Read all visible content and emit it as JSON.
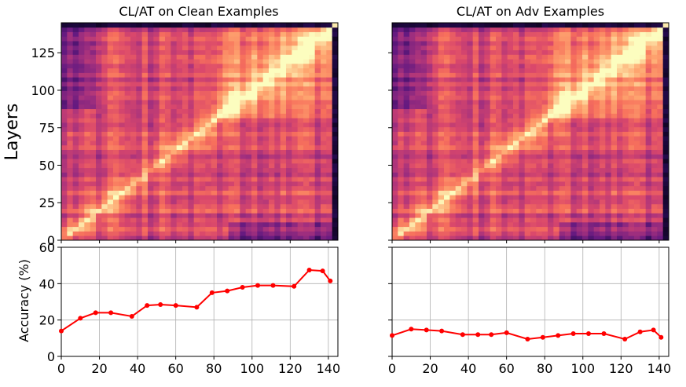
{
  "figure": {
    "ylabel": "Layers"
  },
  "chart_data": [
    {
      "type": "heatmap",
      "title": "CL/AT on Clean Examples",
      "xlabel": "",
      "ylabel": "Layers",
      "xlim": [
        0,
        145
      ],
      "ylim": [
        0,
        145
      ],
      "yticks": [
        0,
        25,
        50,
        75,
        100,
        125
      ],
      "colormap": "magma (purple → orange → light yellow)",
      "description": "Layer-to-layer similarity matrix; bright diagonal, bright block for layers ~80–140"
    },
    {
      "type": "heatmap",
      "title": "CL/AT on Adv Examples",
      "xlabel": "",
      "ylabel": "",
      "xlim": [
        0,
        145
      ],
      "ylim": [
        0,
        145
      ],
      "yticks": [
        0,
        25,
        50,
        75,
        100,
        125
      ],
      "colormap": "magma (purple → orange → light yellow)",
      "description": "Layer-to-layer similarity matrix; bright diagonal, bright block for layers ~80–140"
    },
    {
      "type": "line",
      "title": "",
      "xlabel": "",
      "ylabel": "Accuracy (%)",
      "xlim": [
        0,
        145
      ],
      "ylim": [
        0,
        60
      ],
      "xticks": [
        0,
        20,
        40,
        60,
        80,
        100,
        120,
        140
      ],
      "yticks": [
        0,
        20,
        40,
        60
      ],
      "grid": true,
      "series": [
        {
          "color": "#ff0000",
          "x": [
            0,
            10,
            18,
            26,
            37,
            45,
            52,
            60,
            71,
            79,
            87,
            95,
            103,
            111,
            122,
            130,
            137,
            141
          ],
          "y": [
            14,
            21,
            24,
            24,
            22,
            28,
            28.5,
            28,
            27,
            35,
            36,
            38,
            39,
            39,
            38.5,
            47.5,
            47,
            41.5
          ]
        }
      ]
    },
    {
      "type": "line",
      "title": "",
      "xlabel": "",
      "ylabel": "",
      "xlim": [
        0,
        145
      ],
      "ylim": [
        0,
        60
      ],
      "xticks": [
        0,
        20,
        40,
        60,
        80,
        100,
        120,
        140
      ],
      "yticks": [
        0,
        20,
        40,
        60
      ],
      "grid": true,
      "series": [
        {
          "color": "#ff0000",
          "x": [
            0,
            10,
            18,
            26,
            37,
            45,
            52,
            60,
            71,
            79,
            87,
            95,
            103,
            111,
            122,
            130,
            137,
            141
          ],
          "y": [
            11.5,
            15,
            14.5,
            14,
            12,
            12,
            12,
            13,
            9.5,
            10.5,
            11.5,
            12.5,
            12.5,
            12.5,
            9.5,
            13.5,
            14.5,
            10.5
          ]
        }
      ]
    }
  ]
}
